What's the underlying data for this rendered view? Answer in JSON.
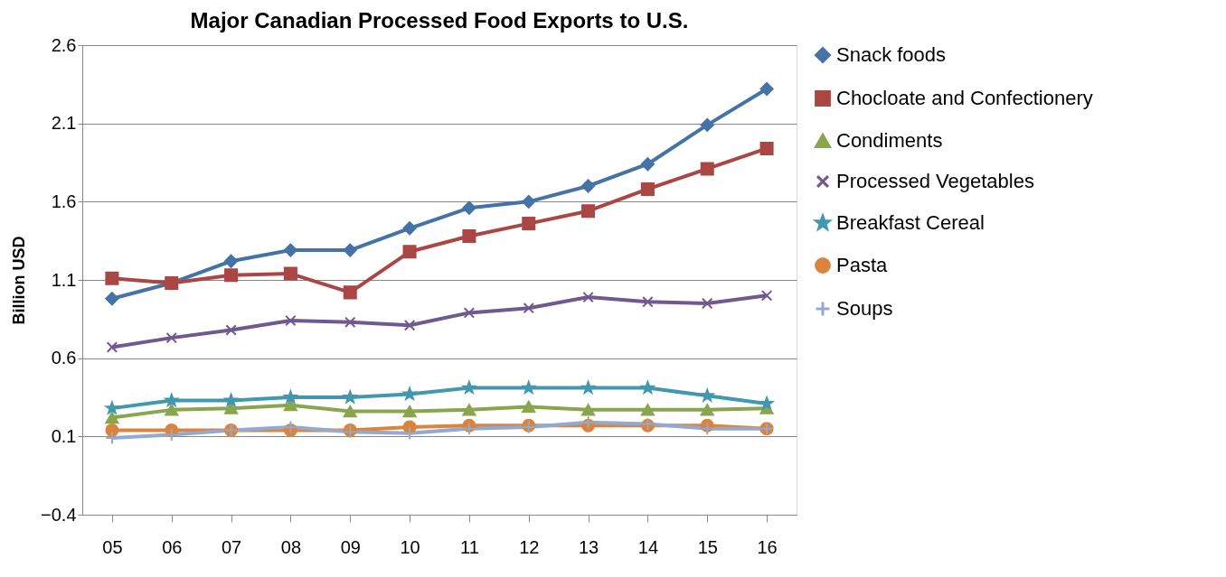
{
  "chart_data": {
    "type": "line",
    "title": "Major Canadian Processed Food Exports to U.S.",
    "ylabel": "Billion USD",
    "categories": [
      "05",
      "06",
      "07",
      "08",
      "09",
      "10",
      "11",
      "12",
      "13",
      "14",
      "15",
      "16"
    ],
    "ylim": [
      -0.4,
      2.6
    ],
    "yticks": [
      -0.4,
      0.1,
      0.6,
      1.1,
      1.6,
      2.1,
      2.6
    ],
    "grid": "y",
    "legend": "right",
    "line_style": "solid",
    "series": [
      {
        "name": "Snack foods",
        "color": "#4572a7",
        "marker": "diamond",
        "values": [
          0.98,
          1.08,
          1.22,
          1.29,
          1.29,
          1.43,
          1.56,
          1.6,
          1.7,
          1.84,
          2.09,
          2.32
        ]
      },
      {
        "name": "Chocloate and Confectionery",
        "color": "#aa4643",
        "marker": "square",
        "values": [
          1.11,
          1.08,
          1.13,
          1.14,
          1.02,
          1.28,
          1.38,
          1.46,
          1.54,
          1.68,
          1.81,
          1.94
        ]
      },
      {
        "name": "Condiments",
        "color": "#89a54e",
        "marker": "triangle",
        "values": [
          0.22,
          0.27,
          0.28,
          0.3,
          0.26,
          0.26,
          0.27,
          0.29,
          0.27,
          0.27,
          0.27,
          0.28
        ]
      },
      {
        "name": "Processed Vegetables",
        "color": "#71588f",
        "marker": "cross",
        "values": [
          0.67,
          0.73,
          0.78,
          0.84,
          0.83,
          0.81,
          0.89,
          0.92,
          0.99,
          0.96,
          0.95,
          1.0
        ]
      },
      {
        "name": "Breakfast Cereal",
        "color": "#4198af",
        "marker": "star",
        "values": [
          0.28,
          0.33,
          0.33,
          0.35,
          0.35,
          0.37,
          0.41,
          0.41,
          0.41,
          0.41,
          0.36,
          0.31
        ]
      },
      {
        "name": "Pasta",
        "color": "#db843d",
        "marker": "circle",
        "values": [
          0.14,
          0.14,
          0.14,
          0.14,
          0.14,
          0.16,
          0.17,
          0.17,
          0.17,
          0.17,
          0.17,
          0.15
        ]
      },
      {
        "name": "Soups",
        "color": "#93a9cf",
        "marker": "plus",
        "values": [
          0.09,
          0.11,
          0.14,
          0.16,
          0.13,
          0.12,
          0.15,
          0.16,
          0.19,
          0.18,
          0.15,
          0.15
        ]
      }
    ]
  }
}
